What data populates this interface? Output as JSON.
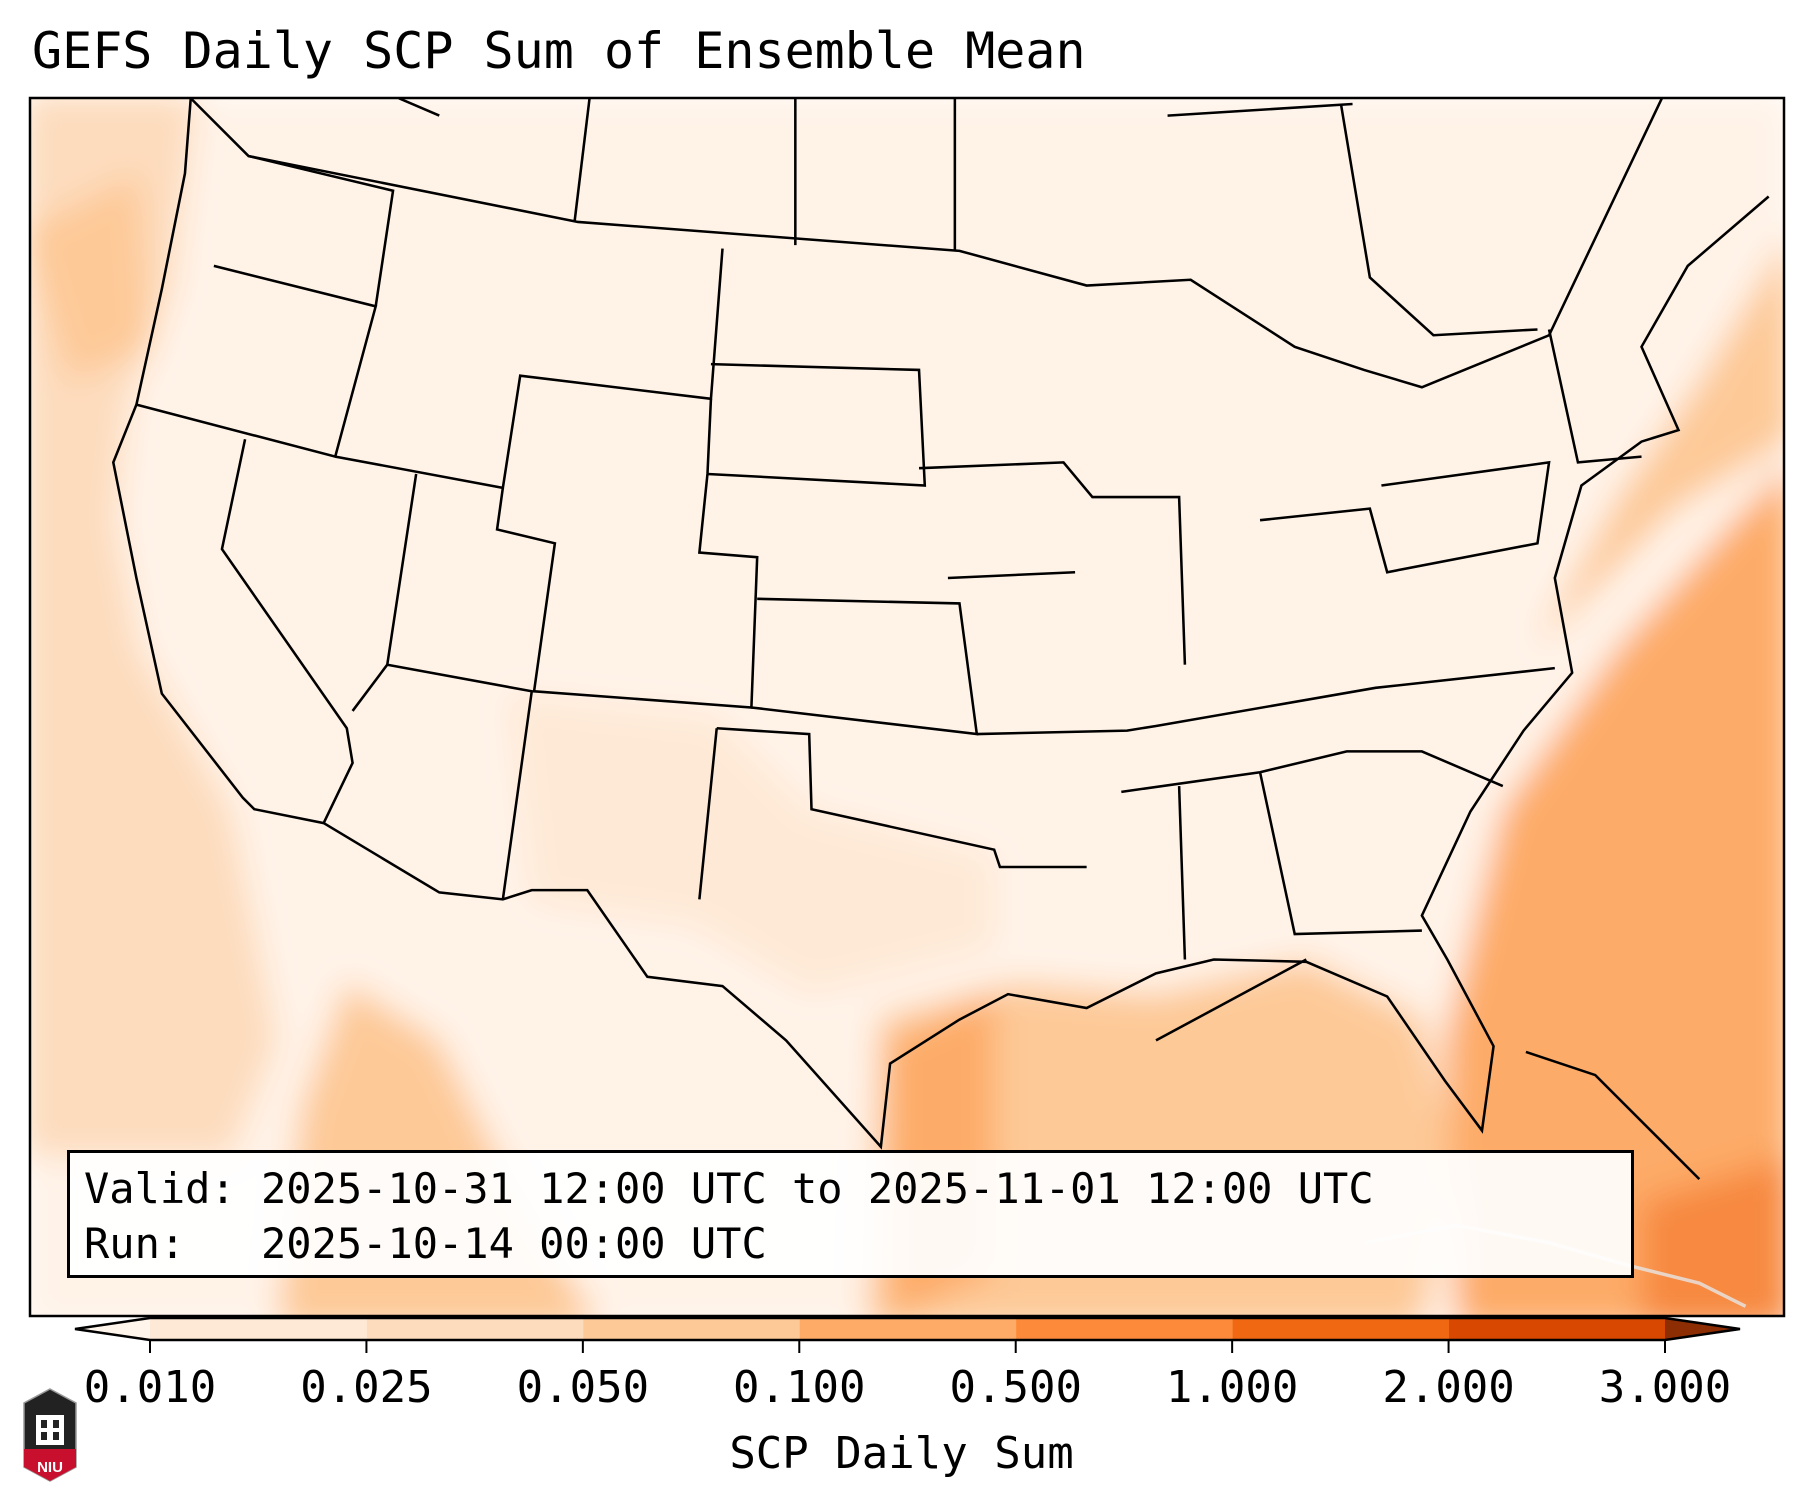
{
  "title": "GEFS Daily SCP Sum of Ensemble Mean",
  "info": {
    "valid_label": "Valid:",
    "valid_value": "2025-10-31 12:00 UTC to 2025-11-01 12:00 UTC",
    "run_label": "Run:",
    "run_value": "2025-10-14 00:00 UTC"
  },
  "colorbar": {
    "label": "SCP Daily Sum",
    "ticks": [
      "0.010",
      "0.025",
      "0.050",
      "0.100",
      "0.500",
      "1.000",
      "2.000",
      "3.000"
    ],
    "colors": [
      "#fee9d6",
      "#fddcbd",
      "#fdc997",
      "#fdab67",
      "#fc8a3a",
      "#f06812",
      "#d84801"
    ],
    "under_color": "#fff5eb",
    "over_color": "#8c2d04"
  },
  "logo": {
    "text": "NIU"
  }
}
